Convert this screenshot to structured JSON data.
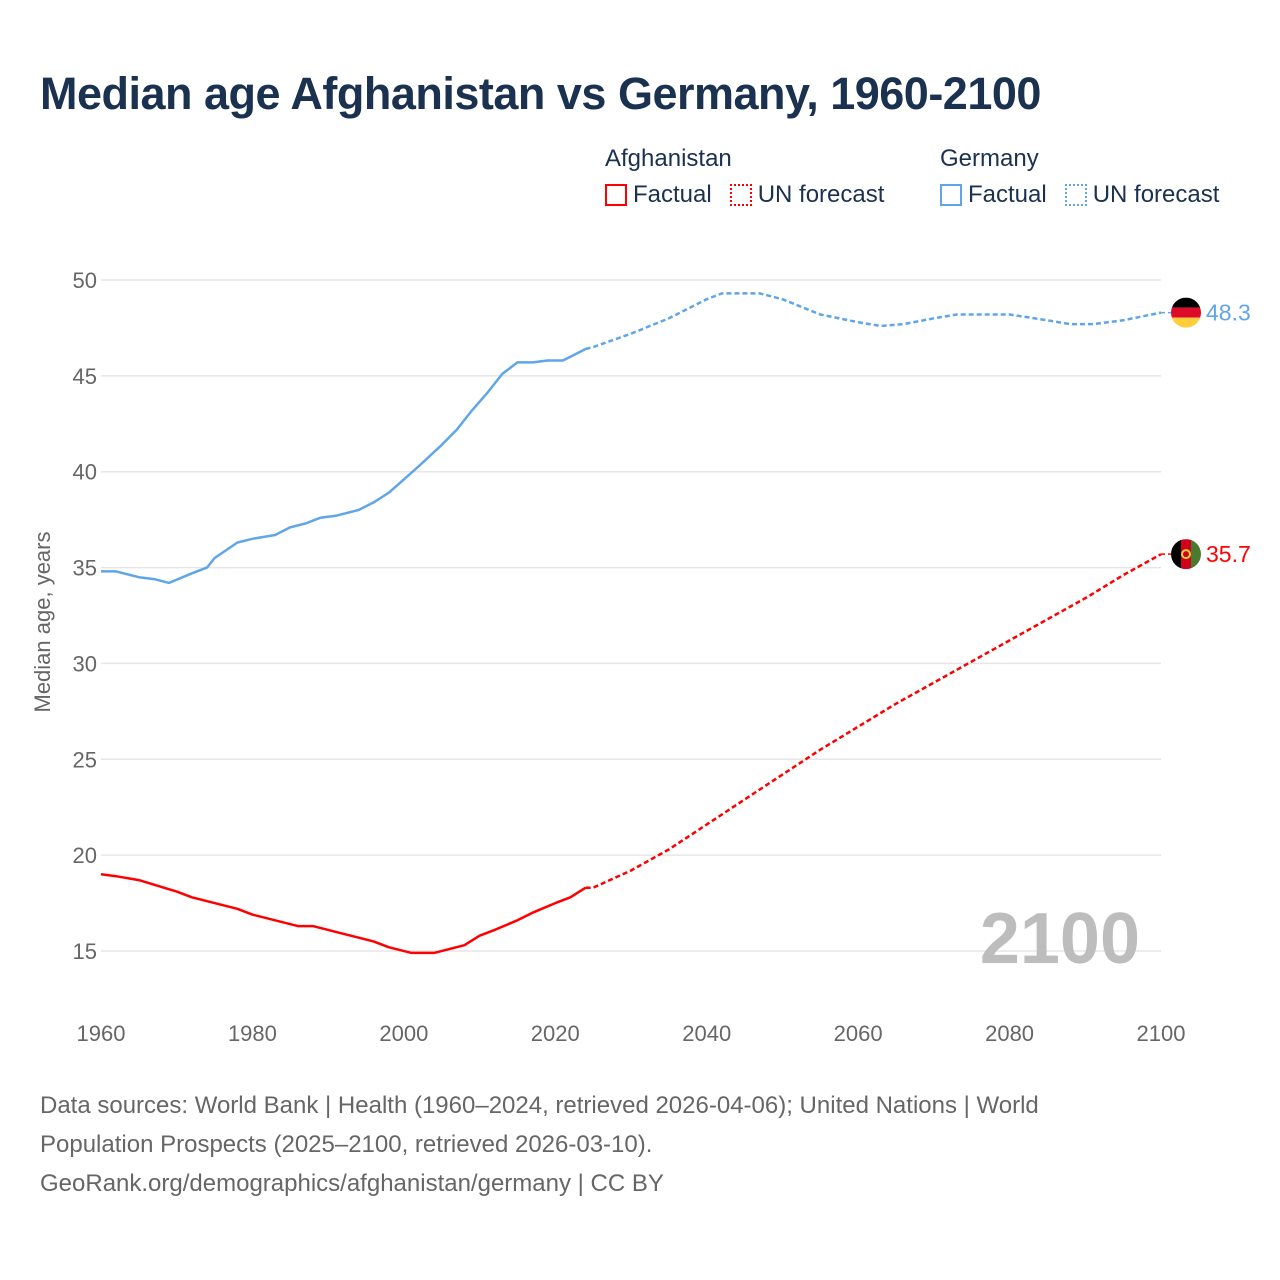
{
  "title": "Median age Afghanistan vs Germany, 1960-2100",
  "legend": {
    "groups": [
      {
        "name": "Afghanistan",
        "color": "#ff0000",
        "factual": "Factual",
        "forecast": "UN forecast"
      },
      {
        "name": "Germany",
        "color": "#5fa5ea",
        "factual": "Factual",
        "forecast": "UN forecast"
      }
    ]
  },
  "chart_data": {
    "type": "line",
    "title": "Median age Afghanistan vs Germany, 1960-2100",
    "xlabel": "",
    "ylabel": "Median age, years",
    "xlim": [
      1960,
      2100
    ],
    "ylim": [
      15,
      50
    ],
    "x_ticks": [
      "1960",
      "1980",
      "2000",
      "2020",
      "2040",
      "2060",
      "2080",
      "2100"
    ],
    "y_ticks": [
      "15",
      "20",
      "25",
      "30",
      "35",
      "40",
      "45",
      "50"
    ],
    "grid": true,
    "year_watermark": "2100",
    "series": [
      {
        "name": "Germany",
        "color": "#5fa5ea",
        "end_label": "48.3",
        "flag": "germany-flag",
        "factual": [
          [
            1960,
            34.8
          ],
          [
            1962,
            34.8
          ],
          [
            1965,
            34.5
          ],
          [
            1967,
            34.4
          ],
          [
            1969,
            34.2
          ],
          [
            1972,
            34.7
          ],
          [
            1974,
            35.0
          ],
          [
            1975,
            35.5
          ],
          [
            1978,
            36.3
          ],
          [
            1980,
            36.5
          ],
          [
            1983,
            36.7
          ],
          [
            1985,
            37.1
          ],
          [
            1987,
            37.3
          ],
          [
            1989,
            37.6
          ],
          [
            1991,
            37.7
          ],
          [
            1994,
            38.0
          ],
          [
            1996,
            38.4
          ],
          [
            1998,
            38.9
          ],
          [
            2000,
            39.6
          ],
          [
            2002,
            40.3
          ],
          [
            2005,
            41.4
          ],
          [
            2007,
            42.2
          ],
          [
            2009,
            43.2
          ],
          [
            2011,
            44.1
          ],
          [
            2013,
            45.1
          ],
          [
            2015,
            45.7
          ],
          [
            2017,
            45.7
          ],
          [
            2019,
            45.8
          ],
          [
            2021,
            45.8
          ],
          [
            2023,
            46.2
          ],
          [
            2024,
            46.4
          ]
        ],
        "forecast": [
          [
            2024,
            46.4
          ],
          [
            2025,
            46.5
          ],
          [
            2030,
            47.2
          ],
          [
            2035,
            48.0
          ],
          [
            2040,
            49.0
          ],
          [
            2042,
            49.3
          ],
          [
            2047,
            49.3
          ],
          [
            2050,
            49.0
          ],
          [
            2055,
            48.2
          ],
          [
            2060,
            47.8
          ],
          [
            2063,
            47.6
          ],
          [
            2066,
            47.7
          ],
          [
            2070,
            48.0
          ],
          [
            2073,
            48.2
          ],
          [
            2080,
            48.2
          ],
          [
            2085,
            47.9
          ],
          [
            2088,
            47.7
          ],
          [
            2091,
            47.7
          ],
          [
            2095,
            47.9
          ],
          [
            2100,
            48.3
          ]
        ]
      },
      {
        "name": "Afghanistan",
        "color": "#ff0000",
        "end_label": "35.7",
        "flag": "afghanistan-flag",
        "factual": [
          [
            1960,
            19.0
          ],
          [
            1962,
            18.9
          ],
          [
            1965,
            18.7
          ],
          [
            1970,
            18.1
          ],
          [
            1972,
            17.8
          ],
          [
            1978,
            17.2
          ],
          [
            1980,
            16.9
          ],
          [
            1986,
            16.3
          ],
          [
            1988,
            16.3
          ],
          [
            1990,
            16.1
          ],
          [
            1996,
            15.5
          ],
          [
            1998,
            15.2
          ],
          [
            2001,
            14.9
          ],
          [
            2004,
            14.9
          ],
          [
            2008,
            15.3
          ],
          [
            2010,
            15.8
          ],
          [
            2012,
            16.1
          ],
          [
            2015,
            16.6
          ],
          [
            2017,
            17.0
          ],
          [
            2020,
            17.5
          ],
          [
            2022,
            17.8
          ],
          [
            2024,
            18.3
          ]
        ],
        "forecast": [
          [
            2024,
            18.3
          ],
          [
            2025,
            18.3
          ],
          [
            2030,
            19.2
          ],
          [
            2035,
            20.3
          ],
          [
            2040,
            21.6
          ],
          [
            2045,
            22.9
          ],
          [
            2050,
            24.2
          ],
          [
            2055,
            25.5
          ],
          [
            2060,
            26.7
          ],
          [
            2065,
            27.9
          ],
          [
            2070,
            29.0
          ],
          [
            2075,
            30.1
          ],
          [
            2080,
            31.2
          ],
          [
            2085,
            32.3
          ],
          [
            2090,
            33.4
          ],
          [
            2095,
            34.6
          ],
          [
            2100,
            35.7
          ]
        ]
      }
    ]
  },
  "footer": {
    "line1": "Data sources: World Bank | Health (1960–2024, retrieved 2026-04-06); United Nations | World",
    "line2": "Population Prospects (2025–2100, retrieved 2026-03-10).",
    "line3": "GeoRank.org/demographics/afghanistan/germany | CC BY"
  }
}
